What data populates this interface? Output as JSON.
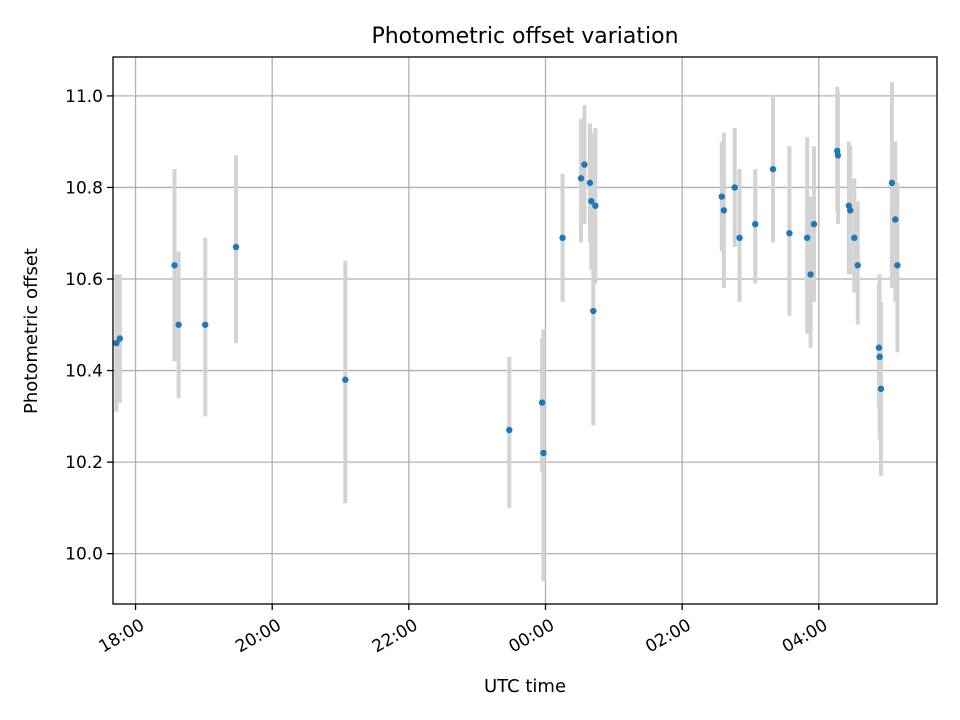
{
  "chart_data": {
    "type": "scatter",
    "title": "Photometric offset variation",
    "xlabel": "UTC time",
    "ylabel": "Photometric offset",
    "xlim": [
      -6.33,
      5.73
    ],
    "ylim": [
      9.89,
      11.085
    ],
    "grid": true,
    "x_ticks": [
      {
        "value": -6,
        "label": "18:00"
      },
      {
        "value": -4,
        "label": "20:00"
      },
      {
        "value": -2,
        "label": "22:00"
      },
      {
        "value": 0,
        "label": "00:00"
      },
      {
        "value": 2,
        "label": "02:00"
      },
      {
        "value": 4,
        "label": "04:00"
      }
    ],
    "y_ticks": [
      {
        "value": 10.0,
        "label": "10.0"
      },
      {
        "value": 10.2,
        "label": "10.2"
      },
      {
        "value": 10.4,
        "label": "10.4"
      },
      {
        "value": 10.6,
        "label": "10.6"
      },
      {
        "value": 10.8,
        "label": "10.8"
      },
      {
        "value": 11.0,
        "label": "11.0"
      }
    ],
    "x_unit": "hours relative to 00:00 UTC",
    "points": [
      {
        "x": -6.28,
        "y": 10.46,
        "low": 10.31,
        "high": 10.61
      },
      {
        "x": -6.23,
        "y": 10.47,
        "low": 10.33,
        "high": 10.61
      },
      {
        "x": -5.43,
        "y": 10.63,
        "low": 10.42,
        "high": 10.84
      },
      {
        "x": -5.37,
        "y": 10.5,
        "low": 10.34,
        "high": 10.66
      },
      {
        "x": -4.98,
        "y": 10.5,
        "low": 10.3,
        "high": 10.69
      },
      {
        "x": -4.53,
        "y": 10.67,
        "low": 10.46,
        "high": 10.87
      },
      {
        "x": -2.93,
        "y": 10.38,
        "low": 10.11,
        "high": 10.64
      },
      {
        "x": -0.53,
        "y": 10.27,
        "low": 10.1,
        "high": 10.43
      },
      {
        "x": -0.05,
        "y": 10.33,
        "low": 10.18,
        "high": 10.47
      },
      {
        "x": -0.03,
        "y": 10.22,
        "low": 9.94,
        "high": 10.49
      },
      {
        "x": 0.25,
        "y": 10.69,
        "low": 10.55,
        "high": 10.83
      },
      {
        "x": 0.52,
        "y": 10.82,
        "low": 10.68,
        "high": 10.95
      },
      {
        "x": 0.57,
        "y": 10.85,
        "low": 10.72,
        "high": 10.98
      },
      {
        "x": 0.65,
        "y": 10.81,
        "low": 10.68,
        "high": 10.94
      },
      {
        "x": 0.67,
        "y": 10.77,
        "low": 10.62,
        "high": 10.92
      },
      {
        "x": 0.7,
        "y": 10.53,
        "low": 10.28,
        "high": 10.79
      },
      {
        "x": 0.73,
        "y": 10.76,
        "low": 10.59,
        "high": 10.93
      },
      {
        "x": 2.58,
        "y": 10.78,
        "low": 10.66,
        "high": 10.9
      },
      {
        "x": 2.61,
        "y": 10.75,
        "low": 10.58,
        "high": 10.92
      },
      {
        "x": 2.77,
        "y": 10.8,
        "low": 10.67,
        "high": 10.93
      },
      {
        "x": 2.84,
        "y": 10.69,
        "low": 10.55,
        "high": 10.84
      },
      {
        "x": 3.07,
        "y": 10.72,
        "low": 10.59,
        "high": 10.84
      },
      {
        "x": 3.33,
        "y": 10.84,
        "low": 10.68,
        "high": 11.0
      },
      {
        "x": 3.57,
        "y": 10.7,
        "low": 10.52,
        "high": 10.89
      },
      {
        "x": 3.83,
        "y": 10.69,
        "low": 10.48,
        "high": 10.91
      },
      {
        "x": 3.88,
        "y": 10.61,
        "low": 10.45,
        "high": 10.78
      },
      {
        "x": 3.93,
        "y": 10.72,
        "low": 10.55,
        "high": 10.89
      },
      {
        "x": 4.27,
        "y": 10.88,
        "low": 10.75,
        "high": 11.02
      },
      {
        "x": 4.28,
        "y": 10.87,
        "low": 10.72,
        "high": 11.01
      },
      {
        "x": 4.44,
        "y": 10.76,
        "low": 10.61,
        "high": 10.9
      },
      {
        "x": 4.46,
        "y": 10.75,
        "low": 10.61,
        "high": 10.89
      },
      {
        "x": 4.52,
        "y": 10.69,
        "low": 10.57,
        "high": 10.82
      },
      {
        "x": 4.57,
        "y": 10.63,
        "low": 10.5,
        "high": 10.77
      },
      {
        "x": 4.88,
        "y": 10.45,
        "low": 10.32,
        "high": 10.59
      },
      {
        "x": 4.89,
        "y": 10.43,
        "low": 10.25,
        "high": 10.61
      },
      {
        "x": 4.91,
        "y": 10.36,
        "low": 10.17,
        "high": 10.55
      },
      {
        "x": 5.07,
        "y": 10.81,
        "low": 10.58,
        "high": 11.03
      },
      {
        "x": 5.12,
        "y": 10.73,
        "low": 10.55,
        "high": 10.9
      },
      {
        "x": 5.15,
        "y": 10.63,
        "low": 10.44,
        "high": 10.81
      }
    ]
  }
}
